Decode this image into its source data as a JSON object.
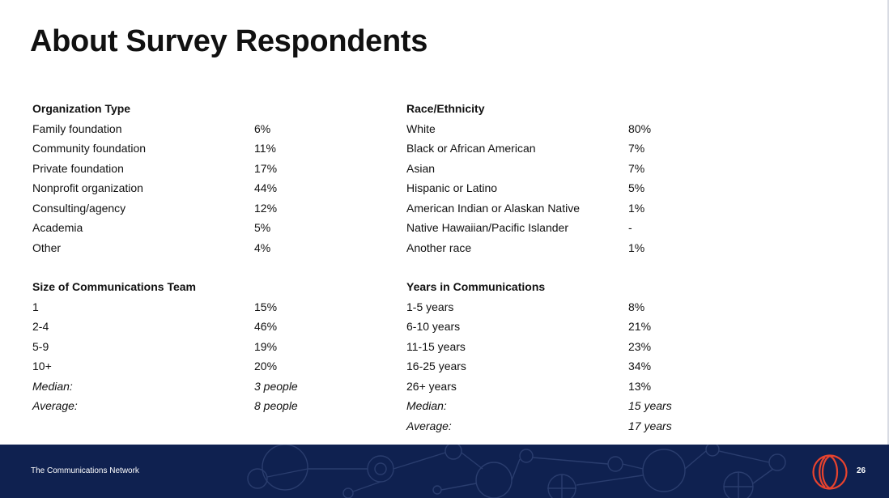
{
  "slide": {
    "title": "About Survey Respondents",
    "page_number": "26"
  },
  "organization_type": {
    "heading": "Organization Type",
    "rows": [
      {
        "label": "Family foundation",
        "value": "6%"
      },
      {
        "label": "Community foundation",
        "value": "11%"
      },
      {
        "label": "Private foundation",
        "value": "17%"
      },
      {
        "label": "Nonprofit organization",
        "value": "44%"
      },
      {
        "label": "Consulting/agency",
        "value": "12%"
      },
      {
        "label": "Academia",
        "value": "5%"
      },
      {
        "label": "Other",
        "value": "4%"
      }
    ]
  },
  "race_ethnicity": {
    "heading": "Race/Ethnicity",
    "rows": [
      {
        "label": "White",
        "value": "80%"
      },
      {
        "label": "Black or African American",
        "value": "7%"
      },
      {
        "label": "Asian",
        "value": "7%"
      },
      {
        "label": "Hispanic or Latino",
        "value": "5%"
      },
      {
        "label": "American Indian or Alaskan Native",
        "value": "1%"
      },
      {
        "label": "Native Hawaiian/Pacific Islander",
        "value": "-"
      },
      {
        "label": "Another race",
        "value": "1%"
      }
    ]
  },
  "team_size": {
    "heading": "Size of Communications Team",
    "rows": [
      {
        "label": "1",
        "value": "15%"
      },
      {
        "label": "2-4",
        "value": "46%"
      },
      {
        "label": "5-9",
        "value": "19%"
      },
      {
        "label": "10+",
        "value": "20%"
      }
    ],
    "median_label": "Median:",
    "median_value": "3 people",
    "average_label": "Average:",
    "average_value": "8 people"
  },
  "years_in_comms": {
    "heading": "Years in Communications",
    "rows": [
      {
        "label": "1-5 years",
        "value": "8%"
      },
      {
        "label": "6-10 years",
        "value": "21%"
      },
      {
        "label": "11-15 years",
        "value": "23%"
      },
      {
        "label": "16-25 years",
        "value": "34%"
      },
      {
        "label": "26+ years",
        "value": "13%"
      }
    ],
    "median_label": "Median:",
    "median_value": "15 years",
    "average_label": "Average:",
    "average_value": "17 years"
  },
  "footer": {
    "organization": "The Communications Network",
    "logo_icon": "concentric-arcs-logo-icon",
    "background_color": "#0f2150",
    "logo_color": "#e8432e"
  }
}
